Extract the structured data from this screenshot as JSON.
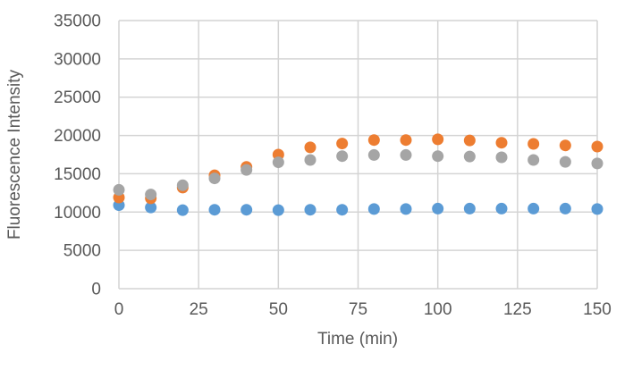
{
  "chart_data": {
    "type": "scatter",
    "title": "",
    "xlabel": "Time (min)",
    "ylabel": "Fluorescence Intensity",
    "xlim": [
      0,
      150
    ],
    "ylim": [
      0,
      35000
    ],
    "x_ticks": [
      0,
      25,
      50,
      75,
      100,
      125,
      150
    ],
    "y_ticks": [
      0,
      5000,
      10000,
      15000,
      20000,
      25000,
      30000,
      35000
    ],
    "grid": true,
    "legend_position": "none",
    "x": [
      0,
      10,
      20,
      30,
      40,
      50,
      60,
      70,
      80,
      90,
      100,
      110,
      120,
      130,
      140,
      150
    ],
    "series": [
      {
        "name": "blue-series",
        "color": "#5B9BD5",
        "values": [
          10900,
          10600,
          10250,
          10300,
          10300,
          10250,
          10300,
          10300,
          10400,
          10400,
          10450,
          10450,
          10450,
          10450,
          10450,
          10400
        ]
      },
      {
        "name": "orange-series",
        "color": "#ED7D31",
        "values": [
          11900,
          11800,
          13200,
          14800,
          15900,
          17500,
          18450,
          18950,
          19400,
          19400,
          19500,
          19350,
          19050,
          18900,
          18700,
          18550
        ]
      },
      {
        "name": "gray-series",
        "color": "#A5A5A5",
        "values": [
          12900,
          12300,
          13500,
          14400,
          15500,
          16500,
          16800,
          17300,
          17450,
          17450,
          17300,
          17250,
          17150,
          16800,
          16550,
          16350
        ]
      }
    ],
    "marker": {
      "shape": "circle"
    },
    "colors": {
      "gridline": "#D4D4D4",
      "tick_label": "#595959",
      "axis_title": "#595959",
      "background": "#FFFFFF"
    }
  }
}
